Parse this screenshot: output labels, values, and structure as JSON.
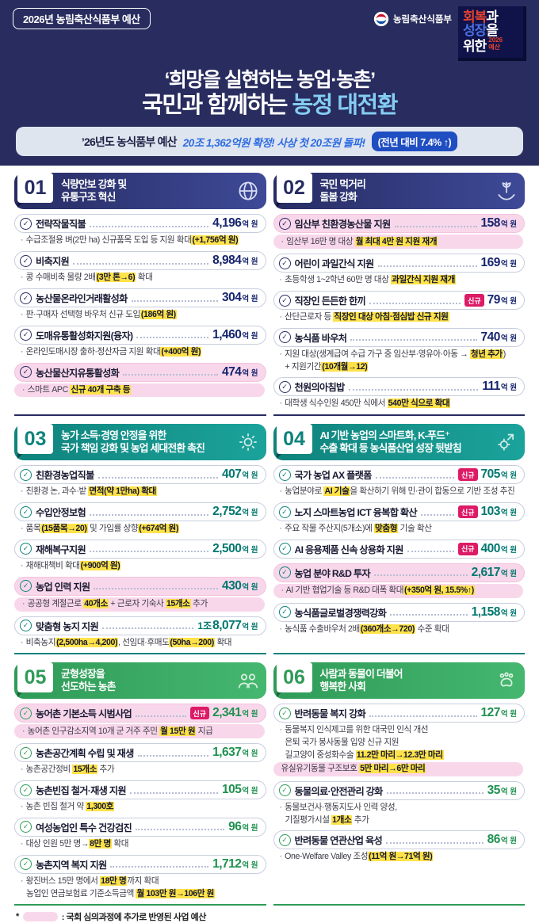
{
  "header": {
    "badge": "2026년 농림축산식품부 예산",
    "ministry": "농림축산식품부",
    "stamp": {
      "l1a": "회복",
      "l1b": "과",
      "l2a": "성장",
      "l2b": "을",
      "l3": "위한",
      "sub1": "2026",
      "sub2": "예산"
    },
    "title1": "‘희망을 실현하는 농업·농촌’",
    "title2_prefix": "국민과 함께하는 ",
    "title2_accent": "농정 대전환"
  },
  "subheader": {
    "prefix": "’26년도 농식품부 예산",
    "script": "20조 1,362억원 확정! 사상 첫 20조원 돌파!",
    "badge": "(전년 대비 7.4% ↑)"
  },
  "footer": {
    "star": "*",
    "note": ": 국회 심의과정에 추가로 반영된 사업 예산"
  },
  "colors": {
    "header_bg": "#282c5e",
    "title_accent": "#85cdf3",
    "subbar_bg": "#dfe5ef",
    "script_blue": "#2e6ce2",
    "pct_badge_blue": "#1f4dc2",
    "highlight_yellow": "#ffe24a",
    "assembly_pink": "#f9d7eb",
    "new_badge": "#dd1a66",
    "navy": "#272c63",
    "teal": "#0f837c",
    "green": "#2f9b58",
    "stamp_red": "#e8432d",
    "stamp_blue": "#4a71e0"
  },
  "sections": [
    {
      "num": "01",
      "theme": "navy",
      "icon": "globe-grain-icon",
      "title": [
        "식량안보 강화 및",
        "유통구조 혁신"
      ],
      "items": [
        {
          "label": "전략작물직불",
          "amount": "4,196",
          "unit": "억 원",
          "bullets": [
            {
              "dot": true,
              "segs": [
                {
                  "t": "수급조절용 벼(2만 ha) 신규품목 도입 등 지원 확대"
                },
                {
                  "t": "(+1,756억 원)",
                  "h": true
                }
              ]
            }
          ]
        },
        {
          "label": "비축지원",
          "amount": "8,984",
          "unit": "억 원",
          "bullets": [
            {
              "dot": true,
              "segs": [
                {
                  "t": "콩 수매비축 물량 2배"
                },
                {
                  "t": "(3만 톤→6)",
                  "h": true
                },
                {
                  "t": " 확대"
                }
              ]
            }
          ]
        },
        {
          "label": "농산물온라인거래활성화",
          "amount": "304",
          "unit": "억 원",
          "bullets": [
            {
              "dot": true,
              "segs": [
                {
                  "t": "판·구매자 선택형 바우처 신규 도입"
                },
                {
                  "t": "(186억 원)",
                  "h": true
                }
              ]
            }
          ]
        },
        {
          "label": "도매유통활성화지원(융자)",
          "amount": "1,460",
          "unit": "억 원",
          "bullets": [
            {
              "dot": true,
              "segs": [
                {
                  "t": "온라인도매시장 출하·정산자금 지원 확대"
                },
                {
                  "t": "(+400억 원)",
                  "h": true
                }
              ]
            }
          ]
        },
        {
          "label": "농산물산지유통활성화",
          "amount": "474",
          "unit": "억 원",
          "pink": true,
          "bullets": [
            {
              "dot": true,
              "pill": true,
              "segs": [
                {
                  "t": "스마트 APC "
                },
                {
                  "t": "신규 40개 구축 등",
                  "h": true
                }
              ]
            }
          ]
        }
      ]
    },
    {
      "num": "02",
      "theme": "navy",
      "icon": "hands-grain-icon",
      "title": [
        "국민 먹거리",
        "돌봄 강화"
      ],
      "items": [
        {
          "label": "임산부 친환경농산물 지원",
          "amount": "158",
          "unit": "억 원",
          "pink": true,
          "bullets": [
            {
              "dot": true,
              "pill": true,
              "segs": [
                {
                  "t": "임산부 16만 명 대상 "
                },
                {
                  "t": "월 최대 4만 원 지원 재개",
                  "h": true
                }
              ]
            }
          ]
        },
        {
          "label": "어린이 과일간식 지원",
          "amount": "169",
          "unit": "억 원",
          "bullets": [
            {
              "dot": true,
              "segs": [
                {
                  "t": "초등학생 1~2학년 60만 명 대상 "
                },
                {
                  "t": "과일간식 지원 재개",
                  "h": true
                }
              ]
            }
          ]
        },
        {
          "label": "직장인 든든한 한끼",
          "amount": "79",
          "unit": "억 원",
          "badge": "신규",
          "bullets": [
            {
              "dot": true,
              "segs": [
                {
                  "t": "산단근로자 등 "
                },
                {
                  "t": "직장인 대상 아침·점심밥 신규 지원",
                  "h": true
                }
              ]
            }
          ]
        },
        {
          "label": "농식품 바우처",
          "amount": "740",
          "unit": "억 원",
          "bullets": [
            {
              "dot": true,
              "segs": [
                {
                  "t": "지원 대상(생계급여 수급 가구 중 임산부·영유아·아동 → "
                },
                {
                  "t": "청년 추가",
                  "h": true
                },
                {
                  "t": ")"
                }
              ]
            },
            {
              "dot": false,
              "segs": [
                {
                  "t": "+ 지원기간"
                },
                {
                  "t": "(10개월→12)",
                  "h": true
                }
              ]
            }
          ]
        },
        {
          "label": "천원의아침밥",
          "amount": "111",
          "unit": "억 원",
          "bullets": [
            {
              "dot": true,
              "segs": [
                {
                  "t": "대학생 식수인원 450만 식에서 "
                },
                {
                  "t": "540만 식으로 확대",
                  "h": true
                }
              ]
            }
          ]
        }
      ]
    },
    {
      "num": "03",
      "theme": "teal",
      "icon": "gear-cycle-icon",
      "title": [
        "농가 소득·경영 안정을 위한",
        "국가 책임 강화 및 농업 세대전환 촉진"
      ],
      "items": [
        {
          "label": "친환경농업직불",
          "amount": "407",
          "unit": "억 원",
          "bullets": [
            {
              "dot": true,
              "segs": [
                {
                  "t": "친환경 논, 과수·밭 "
                },
                {
                  "t": "면적(약 1만ha) 확대",
                  "h": true
                }
              ]
            }
          ]
        },
        {
          "label": "수입안정보험",
          "amount": "2,752",
          "unit": "억 원",
          "bullets": [
            {
              "dot": true,
              "segs": [
                {
                  "t": "품목"
                },
                {
                  "t": "(15품목→20)",
                  "h": true
                },
                {
                  "t": " 및 가입률 상향"
                },
                {
                  "t": "(+674억 원)",
                  "h": true
                }
              ]
            }
          ]
        },
        {
          "label": "재해복구지원",
          "amount": "2,500",
          "unit": "억 원",
          "bullets": [
            {
              "dot": true,
              "segs": [
                {
                  "t": "재해대책비 확대"
                },
                {
                  "t": "(+900억 원)",
                  "h": true
                }
              ]
            }
          ]
        },
        {
          "label": "농업 인력 지원",
          "amount": "430",
          "unit": "억 원",
          "pink": true,
          "bullets": [
            {
              "dot": true,
              "pill": true,
              "segs": [
                {
                  "t": "공공형 계절근로 "
                },
                {
                  "t": "40개소",
                  "h": true
                },
                {
                  "t": " + 근로자 기숙사 "
                },
                {
                  "t": "15개소",
                  "h": true
                },
                {
                  "t": " 추가"
                }
              ]
            }
          ]
        },
        {
          "label": "맞춤형 농지 지원",
          "amount": "8,077",
          "unit": "억 원",
          "prefix": "1조",
          "bullets": [
            {
              "dot": true,
              "segs": [
                {
                  "t": "비축농지"
                },
                {
                  "t": "(2,500ha→4,200)",
                  "h": true
                },
                {
                  "t": ", 선임대·후매도"
                },
                {
                  "t": "(50ha→200)",
                  "h": true
                },
                {
                  "t": " 확대"
                }
              ]
            }
          ]
        }
      ]
    },
    {
      "num": "04",
      "theme": "teal",
      "icon": "gear-up-icon",
      "title": [
        "AI 기반 농업의 스마트화, K-푸드⁺",
        "수출 확대 등 농식품산업 성장 뒷받침"
      ],
      "items": [
        {
          "label": "국가 농업 AX 플랫폼",
          "amount": "705",
          "unit": "억 원",
          "badge": "신규",
          "bullets": [
            {
              "dot": true,
              "segs": [
                {
                  "t": "농업분야로 "
                },
                {
                  "t": "AI 기술",
                  "h": true
                },
                {
                  "t": "을 확산하기 위해 민·관이 합동으로 기반 조성 추진"
                }
              ]
            }
          ]
        },
        {
          "label": "노지 스마트농업 ICT 융복합 확산",
          "amount": "103",
          "unit": "억 원",
          "badge": "신규",
          "bullets": [
            {
              "dot": true,
              "segs": [
                {
                  "t": "주요 작물 주산지(5개소)에 "
                },
                {
                  "t": "맞춤형",
                  "h": true
                },
                {
                  "t": " 기술 확산"
                }
              ]
            }
          ]
        },
        {
          "label": "AI 응용제품 신속 상용화 지원",
          "amount": "400",
          "unit": "억 원",
          "badge": "신규",
          "bullets": []
        },
        {
          "label": "농업 분야 R&D 투자",
          "amount": "2,617",
          "unit": "억 원",
          "pink": true,
          "bullets": [
            {
              "dot": true,
              "pill": true,
              "segs": [
                {
                  "t": "AI 기반 협업기술 등 R&D 대폭 확대"
                },
                {
                  "t": "(+350억 원, 15.5%↑)",
                  "h": true
                }
              ]
            }
          ]
        },
        {
          "label": "농식품글로벌경쟁력강화",
          "amount": "1,158",
          "unit": "억 원",
          "bullets": [
            {
              "dot": true,
              "segs": [
                {
                  "t": "농식품 수출바우처 2배"
                },
                {
                  "t": "(360개소→720)",
                  "h": true
                },
                {
                  "t": " 수준 확대"
                }
              ]
            }
          ]
        }
      ]
    },
    {
      "num": "05",
      "theme": "green",
      "icon": "people-group-icon",
      "title": [
        "균형성장을",
        "선도하는 농촌"
      ],
      "items": [
        {
          "label": "농어촌 기본소득 시범사업",
          "amount": "2,341",
          "unit": "억 원",
          "badge": "신규",
          "pink": true,
          "bullets": [
            {
              "dot": true,
              "pill": true,
              "segs": [
                {
                  "t": "농어촌 인구감소지역 10개 군 거주 주민 "
                },
                {
                  "t": "월 15만 원",
                  "h": true
                },
                {
                  "t": " 지급"
                }
              ]
            }
          ]
        },
        {
          "label": "농촌공간계획 수립 및 재생",
          "amount": "1,637",
          "unit": "억 원",
          "bullets": [
            {
              "dot": true,
              "segs": [
                {
                  "t": "농촌공간정비 "
                },
                {
                  "t": "15개소",
                  "h": true
                },
                {
                  "t": " 추가"
                }
              ]
            }
          ]
        },
        {
          "label": "농촌빈집 철거·재생 지원",
          "amount": "105",
          "unit": "억 원",
          "bullets": [
            {
              "dot": true,
              "segs": [
                {
                  "t": "농촌 빈집 철거 약 "
                },
                {
                  "t": "1,300호",
                  "h": true
                }
              ]
            }
          ]
        },
        {
          "label": "여성농업인 특수 건강검진",
          "amount": "96",
          "unit": "억 원",
          "bullets": [
            {
              "dot": true,
              "segs": [
                {
                  "t": "대상 인원 5만 명→"
                },
                {
                  "t": "8만 명",
                  "h": true
                },
                {
                  "t": " 확대"
                }
              ]
            }
          ]
        },
        {
          "label": "농촌지역 복지 지원",
          "amount": "1,712",
          "unit": "억 원",
          "bullets": [
            {
              "dot": true,
              "segs": [
                {
                  "t": "왕진버스 15만 명에서 "
                },
                {
                  "t": "18만 명",
                  "h": true
                },
                {
                  "t": "까지 확대"
                }
              ]
            },
            {
              "dot": false,
              "segs": [
                {
                  "t": "농업인 연금보험료 기준소득금액 "
                },
                {
                  "t": "월 103만 원→106만 원",
                  "h": true
                }
              ]
            }
          ]
        }
      ]
    },
    {
      "num": "06",
      "theme": "green",
      "icon": "paw-hands-icon",
      "title": [
        "사람과 동물이 더불어",
        "행복한 사회"
      ],
      "items": [
        {
          "label": "반려동물 복지 강화",
          "amount": "127",
          "unit": "억 원",
          "bullets": [
            {
              "dot": true,
              "segs": [
                {
                  "t": "동물복지 인식제고를 위한 대국민 인식 개선"
                }
              ]
            },
            {
              "dot": false,
              "segs": [
                {
                  "t": "은퇴 국가 봉사동물 입양 신규 지원"
                }
              ]
            },
            {
              "dot": false,
              "segs": [
                {
                  "t": "길고양이 중성화수술 "
                },
                {
                  "t": "11.2만 마리→12.3만 마리",
                  "h": true
                }
              ]
            },
            {
              "dot": false,
              "pill": true,
              "segs": [
                {
                  "t": "유실유기동물 구조보호 "
                },
                {
                  "t": "5만 마리→6만 마리",
                  "h": true
                }
              ]
            }
          ]
        },
        {
          "label": "동물의료·안전관리 강화",
          "amount": "35",
          "unit": "억 원",
          "bullets": [
            {
              "dot": true,
              "segs": [
                {
                  "t": "동물보건사·행동지도사 인력 양성,"
                }
              ]
            },
            {
              "dot": false,
              "segs": [
                {
                  "t": "기질평가시설 "
                },
                {
                  "t": "1개소",
                  "h": true
                },
                {
                  "t": " 추가"
                }
              ]
            }
          ]
        },
        {
          "label": "반려동물 연관산업 육성",
          "amount": "86",
          "unit": "억 원",
          "bullets": [
            {
              "dot": true,
              "segs": [
                {
                  "t": "One-Welfare Valley 조성"
                },
                {
                  "t": "(11억 원→71억 원)",
                  "h": true
                }
              ]
            }
          ]
        }
      ]
    }
  ]
}
